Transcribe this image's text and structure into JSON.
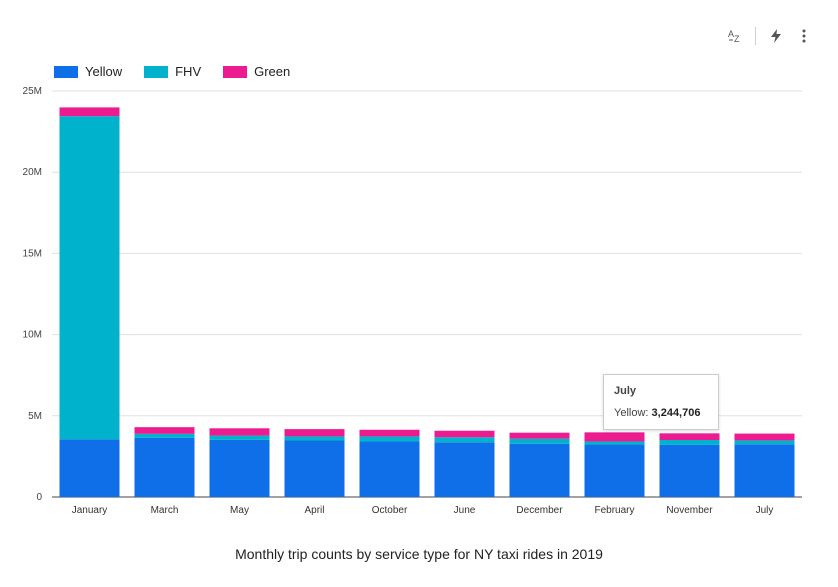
{
  "toolbar": {
    "sort_icon": "sort-az-icon",
    "insights_icon": "lightning-icon",
    "more_icon": "more-vert-icon"
  },
  "tooltip": {
    "title": "July",
    "series_label": "Yellow",
    "value": "3,244,706"
  },
  "chart_data": {
    "type": "bar",
    "stacked": true,
    "title": "Monthly trip counts by service type for NY taxi rides in 2019",
    "xlabel": "",
    "ylabel": "",
    "ylim": [
      0,
      25000000
    ],
    "yticks": [
      0,
      5000000,
      10000000,
      15000000,
      20000000,
      25000000
    ],
    "ytick_labels": [
      "0",
      "5M",
      "10M",
      "15M",
      "20M",
      "25M"
    ],
    "grid": true,
    "legend": "top-left",
    "categories": [
      "January",
      "March",
      "May",
      "April",
      "October",
      "June",
      "December",
      "February",
      "November",
      "July"
    ],
    "series": [
      {
        "name": "Yellow",
        "color": "#0e6fe8",
        "values": [
          3550000,
          3650000,
          3520000,
          3480000,
          3420000,
          3370000,
          3280000,
          3240000,
          3220000,
          3244706
        ]
      },
      {
        "name": "FHV",
        "color": "#00b2cc",
        "values": [
          19900000,
          240000,
          260000,
          250000,
          310000,
          310000,
          310000,
          180000,
          290000,
          240000
        ]
      },
      {
        "name": "Green",
        "color": "#ec1b8f",
        "values": [
          540000,
          410000,
          450000,
          450000,
          410000,
          400000,
          370000,
          560000,
          410000,
          420000
        ]
      }
    ]
  }
}
